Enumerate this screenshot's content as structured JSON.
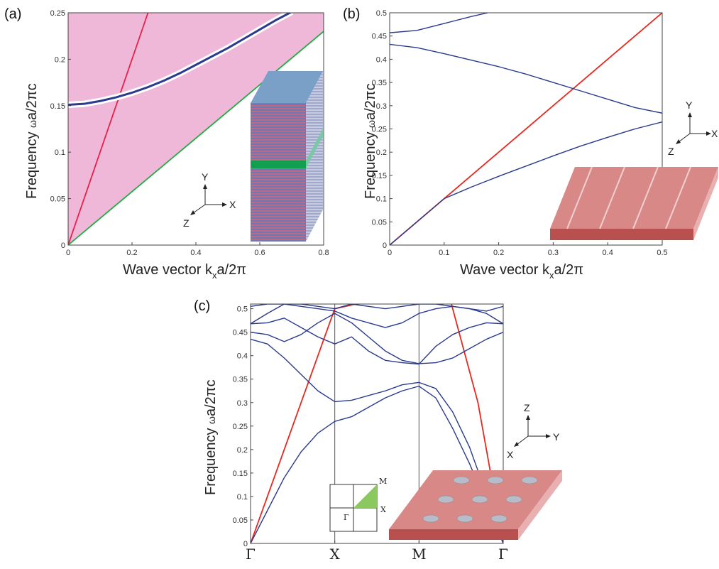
{
  "colors": {
    "band": "#2a3a8c",
    "light_line": "#e8204a",
    "light_line_b": "#e8281e",
    "substrate_line": "#22aa44",
    "cone_fill": "#f0b8d8",
    "slab": "#d98888",
    "slab_dark": "#b85050"
  },
  "panels": {
    "a": "(a)",
    "b": "(b)",
    "c": "(c)"
  },
  "inset": {
    "bz": {
      "gamma": "Γ",
      "x": "X",
      "m": "M"
    }
  },
  "chart_data": [
    {
      "id": "a",
      "type": "line",
      "xlabel": "Wave vector k",
      "xlabel_sub": "x",
      "xlabel_tail": "a/2π",
      "ylabel_pre": "Frequency ",
      "ylabel_post": "a/2πc",
      "ylabel_sym": "ω",
      "xlim": [
        0,
        0.8
      ],
      "ylim": [
        0,
        0.25
      ],
      "xticks": [
        "0",
        "0.2",
        "0.4",
        "0.6",
        "0.8"
      ],
      "xtick_values": [
        0,
        0.2,
        0.4,
        0.6,
        0.8
      ],
      "yticks": [
        "0",
        "0.05",
        "0.1",
        "0.15",
        "0.2",
        "0.25"
      ],
      "ytick_values": [
        0,
        0.05,
        0.1,
        0.15,
        0.2,
        0.25
      ],
      "axes_labels": {
        "y": "Y",
        "x": "X",
        "z": "Z"
      },
      "shaded_region": "above substrate light line",
      "series": [
        {
          "role": "light-line",
          "color": "light_line",
          "x": [
            0,
            0.25
          ],
          "y": [
            0,
            0.25
          ]
        },
        {
          "role": "substrate-line",
          "color": "substrate_line",
          "x": [
            0,
            0.8
          ],
          "y": [
            0,
            0.23
          ]
        },
        {
          "role": "band",
          "color": "band",
          "x": [
            0,
            0.05,
            0.1,
            0.15,
            0.2,
            0.25,
            0.3,
            0.35,
            0.4,
            0.45,
            0.5,
            0.55,
            0.6,
            0.65,
            0.7
          ],
          "y": [
            0.151,
            0.152,
            0.155,
            0.159,
            0.164,
            0.17,
            0.177,
            0.185,
            0.194,
            0.203,
            0.212,
            0.222,
            0.232,
            0.242,
            0.251
          ]
        }
      ]
    },
    {
      "id": "b",
      "type": "line",
      "xlabel": "Wave vector k",
      "xlabel_sub": "x",
      "xlabel_tail": "a/2π",
      "ylabel_pre": "Frequency ",
      "ylabel_post": "a/2πc",
      "ylabel_sym": "ω",
      "xlim": [
        0,
        0.5
      ],
      "ylim": [
        0,
        0.5
      ],
      "xticks": [
        "0",
        "0.1",
        "0.2",
        "0.3",
        "0.4",
        "0.5"
      ],
      "xtick_values": [
        0,
        0.1,
        0.2,
        0.3,
        0.4,
        0.5
      ],
      "yticks": [
        "0",
        "0.05",
        "0.1",
        "0.15",
        "0.2",
        "0.25",
        "0.3",
        "0.35",
        "0.4",
        "0.45",
        "0.5"
      ],
      "ytick_values": [
        0,
        0.05,
        0.1,
        0.15,
        0.2,
        0.25,
        0.3,
        0.35,
        0.4,
        0.45,
        0.5
      ],
      "axes_labels": {
        "y": "Y",
        "x": "X",
        "z": "Z"
      },
      "series": [
        {
          "role": "light-line",
          "color": "light_line_b",
          "x": [
            0,
            0.5
          ],
          "y": [
            0,
            0.5
          ]
        },
        {
          "role": "band",
          "color": "band",
          "x": [
            0,
            0.05,
            0.1,
            0.15,
            0.2,
            0.25,
            0.3,
            0.35,
            0.4,
            0.45,
            0.5
          ],
          "y": [
            0,
            0.05,
            0.1,
            0.125,
            0.148,
            0.17,
            0.192,
            0.213,
            0.232,
            0.25,
            0.265
          ]
        },
        {
          "role": "band",
          "color": "band",
          "x": [
            0,
            0.05,
            0.1,
            0.15,
            0.2,
            0.25,
            0.3,
            0.35,
            0.4,
            0.45,
            0.5
          ],
          "y": [
            0.432,
            0.425,
            0.412,
            0.398,
            0.384,
            0.368,
            0.35,
            0.332,
            0.314,
            0.296,
            0.284
          ]
        },
        {
          "role": "band",
          "color": "band",
          "x": [
            0,
            0.05,
            0.1,
            0.15,
            0.18
          ],
          "y": [
            0.457,
            0.462,
            0.477,
            0.492,
            0.5
          ]
        }
      ]
    },
    {
      "id": "c",
      "type": "line",
      "ylabel_pre": "Frequency ",
      "ylabel_post": "a/2πc",
      "ylabel_sym": "ω",
      "xlim": [
        0,
        3
      ],
      "ylim": [
        0,
        0.51
      ],
      "xticks": [
        "Γ",
        "X",
        "M",
        "Γ"
      ],
      "xtick_values": [
        0,
        1,
        2,
        3
      ],
      "yticks": [
        "0",
        "0.05",
        "0.1",
        "0.15",
        "0.2",
        "0.25",
        "0.3",
        "0.35",
        "0.4",
        "0.45",
        "0.5"
      ],
      "ytick_values": [
        0,
        0.05,
        0.1,
        0.15,
        0.2,
        0.25,
        0.3,
        0.35,
        0.4,
        0.45,
        0.5
      ],
      "axes_labels": {
        "z": "Z",
        "y": "Y",
        "x": "X"
      },
      "series": [
        {
          "role": "light-line",
          "color": "light_line_b",
          "x": [
            0,
            1,
            1.5
          ],
          "y": [
            0,
            0.5,
            0.52
          ]
        },
        {
          "role": "light-line",
          "color": "light_line_b",
          "x": [
            2.37,
            2.7,
            3
          ],
          "y": [
            0.52,
            0.3,
            0
          ]
        },
        {
          "role": "band",
          "color": "band",
          "x": [
            0,
            0.2,
            0.4,
            0.6,
            0.8,
            1.0,
            1.2,
            1.4,
            1.6,
            1.8,
            2.0,
            2.2,
            2.4,
            2.6,
            2.8,
            3.0
          ],
          "y": [
            0,
            0.07,
            0.14,
            0.195,
            0.235,
            0.26,
            0.27,
            0.29,
            0.31,
            0.325,
            0.335,
            0.31,
            0.245,
            0.17,
            0.085,
            0
          ]
        },
        {
          "role": "band",
          "color": "band",
          "x": [
            0,
            0.2,
            0.4,
            0.6,
            0.8,
            1.0,
            1.2,
            1.4,
            1.6,
            1.8,
            2.0,
            2.2,
            2.4,
            2.6,
            2.8,
            3.0
          ],
          "y": [
            0.435,
            0.425,
            0.395,
            0.36,
            0.325,
            0.302,
            0.305,
            0.315,
            0.325,
            0.338,
            0.343,
            0.33,
            0.28,
            0.205,
            0.105,
            0
          ]
        },
        {
          "role": "band",
          "color": "band",
          "x": [
            0,
            0.2,
            0.4,
            0.6,
            0.8,
            1.0,
            1.2,
            1.4,
            1.6,
            1.8,
            2.0,
            2.2,
            2.4,
            2.6,
            2.8,
            3.0
          ],
          "y": [
            0.45,
            0.445,
            0.43,
            0.445,
            0.47,
            0.49,
            0.47,
            0.44,
            0.41,
            0.39,
            0.383,
            0.385,
            0.395,
            0.415,
            0.435,
            0.45
          ]
        },
        {
          "role": "band",
          "color": "band",
          "x": [
            0,
            0.2,
            0.4,
            0.6,
            0.8,
            1.0,
            1.2,
            1.4,
            1.6,
            1.8,
            2.0,
            2.2,
            2.4,
            2.6,
            2.8,
            3.0
          ],
          "y": [
            0.468,
            0.47,
            0.48,
            0.46,
            0.44,
            0.425,
            0.44,
            0.41,
            0.39,
            0.385,
            0.382,
            0.42,
            0.445,
            0.46,
            0.47,
            0.468
          ]
        },
        {
          "role": "band",
          "color": "band",
          "x": [
            0,
            0.2,
            0.4,
            0.6,
            0.8,
            1.0,
            1.2,
            1.4,
            1.6,
            1.8,
            2.0,
            2.2,
            2.4,
            2.6,
            2.8,
            3.0
          ],
          "y": [
            0.468,
            0.49,
            0.51,
            0.505,
            0.5,
            0.495,
            0.48,
            0.47,
            0.46,
            0.47,
            0.49,
            0.5,
            0.505,
            0.5,
            0.49,
            0.468
          ]
        },
        {
          "role": "band",
          "color": "band",
          "x": [
            0,
            0.2,
            0.4,
            0.6,
            0.8,
            1.0,
            1.2,
            1.4,
            1.6,
            1.8,
            2.0,
            2.2,
            2.4,
            2.6,
            2.8,
            3.0
          ],
          "y": [
            0.505,
            0.51,
            0.51,
            0.51,
            0.505,
            0.5,
            0.51,
            0.505,
            0.5,
            0.505,
            0.51,
            0.51,
            0.505,
            0.5,
            0.495,
            0.505
          ]
        }
      ]
    }
  ]
}
